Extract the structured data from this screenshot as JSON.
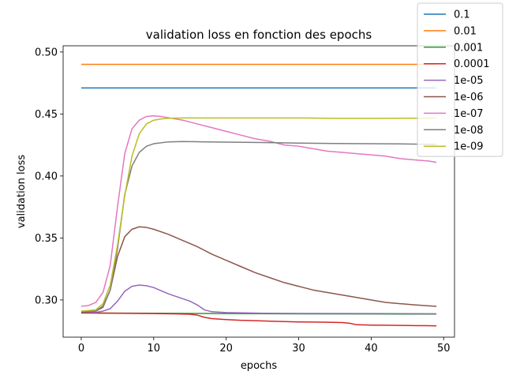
{
  "chart_data": {
    "type": "line",
    "title": "validation loss en fonction des epochs",
    "xlabel": "epochs",
    "ylabel": "validation loss",
    "xlim": [
      -2.5,
      51.5
    ],
    "ylim": [
      0.27,
      0.505
    ],
    "xticks": [
      0,
      10,
      20,
      30,
      40,
      50
    ],
    "yticks": [
      0.3,
      0.35,
      0.4,
      0.45,
      0.5
    ],
    "grid": false,
    "legend_position": "top-right",
    "colors": [
      "#1f77b4",
      "#ff7f0e",
      "#2ca02c",
      "#d62728",
      "#9467bd",
      "#8c564b",
      "#e377c2",
      "#7f7f7f",
      "#bcbd22"
    ],
    "series": [
      {
        "name": "0.1",
        "x_range": [
          0,
          49
        ],
        "y": [
          [
            0,
            0.471
          ],
          [
            49,
            0.471
          ]
        ]
      },
      {
        "name": "0.01",
        "x_range": [
          0,
          49
        ],
        "y": [
          [
            0,
            0.49
          ],
          [
            49,
            0.49
          ]
        ]
      },
      {
        "name": "0.001",
        "x_range": [
          0,
          49
        ],
        "y": [
          [
            0,
            0.2895
          ],
          [
            10,
            0.2893
          ],
          [
            20,
            0.289
          ],
          [
            30,
            0.2888
          ],
          [
            40,
            0.2887
          ],
          [
            49,
            0.2886
          ]
        ]
      },
      {
        "name": "0.0001",
        "x_range": [
          0,
          49
        ],
        "y": [
          [
            0,
            0.2895
          ],
          [
            5,
            0.2893
          ],
          [
            10,
            0.289
          ],
          [
            13,
            0.2888
          ],
          [
            15,
            0.2885
          ],
          [
            16,
            0.2878
          ],
          [
            17,
            0.286
          ],
          [
            18,
            0.285
          ],
          [
            20,
            0.2842
          ],
          [
            22,
            0.2836
          ],
          [
            24,
            0.2833
          ],
          [
            26,
            0.2829
          ],
          [
            28,
            0.2826
          ],
          [
            30,
            0.2823
          ],
          [
            32,
            0.2822
          ],
          [
            34,
            0.282
          ],
          [
            36,
            0.2818
          ],
          [
            37,
            0.2812
          ],
          [
            38,
            0.28
          ],
          [
            40,
            0.2797
          ],
          [
            42,
            0.2796
          ],
          [
            44,
            0.2795
          ],
          [
            46,
            0.2793
          ],
          [
            48,
            0.2792
          ],
          [
            49,
            0.2791
          ]
        ]
      },
      {
        "name": "1e-05",
        "x_range": [
          0,
          49
        ],
        "y": [
          [
            0,
            0.29
          ],
          [
            2,
            0.29
          ],
          [
            3,
            0.291
          ],
          [
            4,
            0.293
          ],
          [
            5,
            0.299
          ],
          [
            6,
            0.307
          ],
          [
            7,
            0.311
          ],
          [
            8,
            0.312
          ],
          [
            9,
            0.3115
          ],
          [
            10,
            0.31
          ],
          [
            12,
            0.305
          ],
          [
            14,
            0.301
          ],
          [
            15,
            0.299
          ],
          [
            16,
            0.296
          ],
          [
            17,
            0.292
          ],
          [
            18,
            0.2905
          ],
          [
            20,
            0.2898
          ],
          [
            25,
            0.2893
          ],
          [
            30,
            0.2891
          ],
          [
            40,
            0.289
          ],
          [
            49,
            0.2889
          ]
        ]
      },
      {
        "name": "1e-06",
        "x_range": [
          0,
          49
        ],
        "y": [
          [
            0,
            0.29
          ],
          [
            2,
            0.291
          ],
          [
            3,
            0.295
          ],
          [
            4,
            0.308
          ],
          [
            5,
            0.335
          ],
          [
            6,
            0.351
          ],
          [
            7,
            0.357
          ],
          [
            8,
            0.359
          ],
          [
            9,
            0.3585
          ],
          [
            10,
            0.357
          ],
          [
            12,
            0.353
          ],
          [
            14,
            0.348
          ],
          [
            16,
            0.343
          ],
          [
            18,
            0.337
          ],
          [
            20,
            0.332
          ],
          [
            22,
            0.327
          ],
          [
            24,
            0.322
          ],
          [
            26,
            0.318
          ],
          [
            28,
            0.314
          ],
          [
            30,
            0.311
          ],
          [
            32,
            0.308
          ],
          [
            34,
            0.306
          ],
          [
            36,
            0.304
          ],
          [
            38,
            0.302
          ],
          [
            40,
            0.3
          ],
          [
            42,
            0.298
          ],
          [
            44,
            0.297
          ],
          [
            46,
            0.296
          ],
          [
            48,
            0.2952
          ],
          [
            49,
            0.2948
          ]
        ]
      },
      {
        "name": "1e-07",
        "x_range": [
          0,
          49
        ],
        "y": [
          [
            0,
            0.295
          ],
          [
            1,
            0.2955
          ],
          [
            2,
            0.298
          ],
          [
            3,
            0.306
          ],
          [
            4,
            0.328
          ],
          [
            5,
            0.375
          ],
          [
            6,
            0.418
          ],
          [
            7,
            0.438
          ],
          [
            8,
            0.445
          ],
          [
            9,
            0.448
          ],
          [
            10,
            0.4485
          ],
          [
            11,
            0.448
          ],
          [
            12,
            0.447
          ],
          [
            14,
            0.445
          ],
          [
            16,
            0.442
          ],
          [
            18,
            0.439
          ],
          [
            20,
            0.436
          ],
          [
            22,
            0.433
          ],
          [
            24,
            0.43
          ],
          [
            26,
            0.428
          ],
          [
            28,
            0.425
          ],
          [
            30,
            0.424
          ],
          [
            32,
            0.422
          ],
          [
            34,
            0.42
          ],
          [
            36,
            0.419
          ],
          [
            38,
            0.418
          ],
          [
            40,
            0.417
          ],
          [
            42,
            0.416
          ],
          [
            44,
            0.414
          ],
          [
            46,
            0.413
          ],
          [
            48,
            0.412
          ],
          [
            49,
            0.411
          ]
        ]
      },
      {
        "name": "1e-08",
        "x_range": [
          0,
          49
        ],
        "y": [
          [
            0,
            0.2905
          ],
          [
            2,
            0.291
          ],
          [
            3,
            0.294
          ],
          [
            4,
            0.308
          ],
          [
            5,
            0.341
          ],
          [
            6,
            0.385
          ],
          [
            7,
            0.408
          ],
          [
            8,
            0.419
          ],
          [
            9,
            0.424
          ],
          [
            10,
            0.426
          ],
          [
            12,
            0.4275
          ],
          [
            14,
            0.4278
          ],
          [
            16,
            0.4276
          ],
          [
            20,
            0.4273
          ],
          [
            25,
            0.427
          ],
          [
            30,
            0.4265
          ],
          [
            35,
            0.4262
          ],
          [
            40,
            0.426
          ],
          [
            45,
            0.4258
          ],
          [
            49,
            0.4255
          ]
        ]
      },
      {
        "name": "1e-09",
        "x_range": [
          0,
          49
        ],
        "y": [
          [
            0,
            0.291
          ],
          [
            2,
            0.292
          ],
          [
            3,
            0.297
          ],
          [
            4,
            0.312
          ],
          [
            5,
            0.344
          ],
          [
            6,
            0.384
          ],
          [
            7,
            0.416
          ],
          [
            8,
            0.434
          ],
          [
            9,
            0.442
          ],
          [
            10,
            0.445
          ],
          [
            11,
            0.446
          ],
          [
            12,
            0.4465
          ],
          [
            14,
            0.4468
          ],
          [
            20,
            0.4468
          ],
          [
            25,
            0.4468
          ],
          [
            30,
            0.4468
          ],
          [
            35,
            0.4465
          ],
          [
            40,
            0.4465
          ],
          [
            45,
            0.4466
          ],
          [
            49,
            0.4467
          ]
        ]
      }
    ]
  }
}
